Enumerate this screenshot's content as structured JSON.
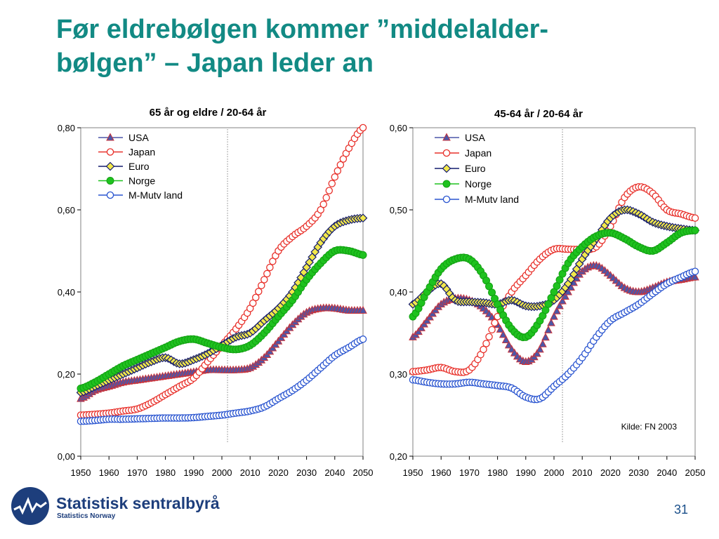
{
  "slide": {
    "title_line1": "Før eldrebølgen kommer ”middelalder-",
    "title_line2": "bølgen” – Japan leder an",
    "page_number": "31"
  },
  "logo": {
    "name": "Statistisk sentralbyrå",
    "subtitle": "Statistics Norway"
  },
  "colors": {
    "title": "#128a84",
    "usa": "#4b57a8",
    "japan": "#e8302a",
    "euro": "#141b6e",
    "euro_fill": "#f2e84a",
    "norge": "#1fc21f",
    "mutv": "#2a55d0"
  },
  "chart_data": [
    {
      "type": "line",
      "title": "65 år og eldre / 20-64 år",
      "x_ticks": [
        "1950",
        "1960",
        "1970",
        "1980",
        "1990",
        "2000",
        "2010",
        "2020",
        "2030",
        "2040",
        "2050"
      ],
      "y_ticks": [
        "0,00",
        "0,20",
        "0,40",
        "0,60",
        "0,80"
      ],
      "ylim": [
        0,
        0.8
      ],
      "xlim": [
        1950,
        2050
      ],
      "reference_line_x": 2002,
      "legend_position": "top-left",
      "grid": false,
      "series": [
        {
          "name": "USA",
          "marker": "triangle",
          "points": [
            [
              1950,
              0.14
            ],
            [
              1955,
              0.16
            ],
            [
              1960,
              0.17
            ],
            [
              1965,
              0.18
            ],
            [
              1970,
              0.185
            ],
            [
              1975,
              0.19
            ],
            [
              1980,
              0.195
            ],
            [
              1985,
              0.2
            ],
            [
              1990,
              0.205
            ],
            [
              1995,
              0.21
            ],
            [
              2000,
              0.21
            ],
            [
              2005,
              0.21
            ],
            [
              2010,
              0.215
            ],
            [
              2015,
              0.24
            ],
            [
              2020,
              0.28
            ],
            [
              2025,
              0.32
            ],
            [
              2030,
              0.35
            ],
            [
              2035,
              0.36
            ],
            [
              2040,
              0.36
            ],
            [
              2045,
              0.355
            ],
            [
              2050,
              0.355
            ]
          ]
        },
        {
          "name": "Japan",
          "marker": "circle-open",
          "points": [
            [
              1950,
              0.1
            ],
            [
              1955,
              0.102
            ],
            [
              1960,
              0.105
            ],
            [
              1965,
              0.11
            ],
            [
              1970,
              0.115
            ],
            [
              1975,
              0.13
            ],
            [
              1980,
              0.15
            ],
            [
              1985,
              0.17
            ],
            [
              1990,
              0.19
            ],
            [
              1995,
              0.23
            ],
            [
              2000,
              0.27
            ],
            [
              2005,
              0.31
            ],
            [
              2010,
              0.36
            ],
            [
              2015,
              0.43
            ],
            [
              2020,
              0.5
            ],
            [
              2025,
              0.535
            ],
            [
              2030,
              0.56
            ],
            [
              2035,
              0.6
            ],
            [
              2040,
              0.68
            ],
            [
              2045,
              0.75
            ],
            [
              2050,
              0.8
            ]
          ]
        },
        {
          "name": "Euro",
          "marker": "diamond",
          "points": [
            [
              1950,
              0.155
            ],
            [
              1955,
              0.17
            ],
            [
              1960,
              0.185
            ],
            [
              1965,
              0.2
            ],
            [
              1970,
              0.215
            ],
            [
              1975,
              0.23
            ],
            [
              1980,
              0.24
            ],
            [
              1985,
              0.225
            ],
            [
              1990,
              0.235
            ],
            [
              1995,
              0.25
            ],
            [
              2000,
              0.27
            ],
            [
              2005,
              0.29
            ],
            [
              2010,
              0.3
            ],
            [
              2015,
              0.33
            ],
            [
              2020,
              0.36
            ],
            [
              2025,
              0.4
            ],
            [
              2030,
              0.46
            ],
            [
              2035,
              0.52
            ],
            [
              2040,
              0.56
            ],
            [
              2045,
              0.575
            ],
            [
              2050,
              0.58
            ]
          ]
        },
        {
          "name": "Norge",
          "marker": "circle-filled",
          "points": [
            [
              1950,
              0.165
            ],
            [
              1955,
              0.18
            ],
            [
              1960,
              0.2
            ],
            [
              1965,
              0.22
            ],
            [
              1970,
              0.235
            ],
            [
              1975,
              0.25
            ],
            [
              1980,
              0.265
            ],
            [
              1985,
              0.28
            ],
            [
              1990,
              0.285
            ],
            [
              1995,
              0.275
            ],
            [
              2000,
              0.265
            ],
            [
              2005,
              0.26
            ],
            [
              2010,
              0.27
            ],
            [
              2015,
              0.3
            ],
            [
              2020,
              0.34
            ],
            [
              2025,
              0.38
            ],
            [
              2030,
              0.43
            ],
            [
              2035,
              0.47
            ],
            [
              2040,
              0.5
            ],
            [
              2045,
              0.5
            ],
            [
              2050,
              0.49
            ]
          ]
        },
        {
          "name": "M-Mutv land",
          "marker": "circle-open",
          "points": [
            [
              1950,
              0.085
            ],
            [
              1955,
              0.087
            ],
            [
              1960,
              0.09
            ],
            [
              1965,
              0.09
            ],
            [
              1970,
              0.091
            ],
            [
              1975,
              0.092
            ],
            [
              1980,
              0.093
            ],
            [
              1985,
              0.093
            ],
            [
              1990,
              0.094
            ],
            [
              1995,
              0.097
            ],
            [
              2000,
              0.1
            ],
            [
              2005,
              0.105
            ],
            [
              2010,
              0.11
            ],
            [
              2015,
              0.12
            ],
            [
              2020,
              0.14
            ],
            [
              2025,
              0.16
            ],
            [
              2030,
              0.185
            ],
            [
              2035,
              0.215
            ],
            [
              2040,
              0.245
            ],
            [
              2045,
              0.265
            ],
            [
              2050,
              0.285
            ]
          ]
        }
      ]
    },
    {
      "type": "line",
      "title": "45-64 år / 20-64 år",
      "x_ticks": [
        "1950",
        "1960",
        "1970",
        "1980",
        "1990",
        "2000",
        "2010",
        "2020",
        "2030",
        "2040",
        "2050"
      ],
      "y_ticks": [
        "0,20",
        "0,30",
        "0,40",
        "0,50",
        "0,60"
      ],
      "ylim": [
        0.2,
        0.6
      ],
      "xlim": [
        1950,
        2050
      ],
      "reference_line_x": 2003,
      "legend_position": "top-left",
      "grid": false,
      "annotation": "Kilde: FN 2003",
      "series": [
        {
          "name": "USA",
          "marker": "triangle",
          "points": [
            [
              1950,
              0.345
            ],
            [
              1955,
              0.365
            ],
            [
              1960,
              0.385
            ],
            [
              1965,
              0.392
            ],
            [
              1970,
              0.39
            ],
            [
              1975,
              0.38
            ],
            [
              1980,
              0.36
            ],
            [
              1985,
              0.33
            ],
            [
              1990,
              0.315
            ],
            [
              1995,
              0.33
            ],
            [
              2000,
              0.37
            ],
            [
              2005,
              0.4
            ],
            [
              2010,
              0.425
            ],
            [
              2015,
              0.432
            ],
            [
              2020,
              0.42
            ],
            [
              2025,
              0.405
            ],
            [
              2030,
              0.4
            ],
            [
              2035,
              0.405
            ],
            [
              2040,
              0.412
            ],
            [
              2045,
              0.415
            ],
            [
              2050,
              0.418
            ]
          ]
        },
        {
          "name": "Japan",
          "marker": "circle-open",
          "points": [
            [
              1950,
              0.303
            ],
            [
              1955,
              0.305
            ],
            [
              1960,
              0.308
            ],
            [
              1965,
              0.303
            ],
            [
              1970,
              0.305
            ],
            [
              1975,
              0.33
            ],
            [
              1980,
              0.37
            ],
            [
              1985,
              0.4
            ],
            [
              1990,
              0.42
            ],
            [
              1995,
              0.44
            ],
            [
              2000,
              0.452
            ],
            [
              2005,
              0.452
            ],
            [
              2010,
              0.452
            ],
            [
              2015,
              0.455
            ],
            [
              2020,
              0.48
            ],
            [
              2025,
              0.515
            ],
            [
              2030,
              0.528
            ],
            [
              2035,
              0.52
            ],
            [
              2040,
              0.5
            ],
            [
              2045,
              0.495
            ],
            [
              2050,
              0.49
            ]
          ]
        },
        {
          "name": "Euro",
          "marker": "diamond",
          "points": [
            [
              1950,
              0.385
            ],
            [
              1955,
              0.4
            ],
            [
              1960,
              0.41
            ],
            [
              1965,
              0.39
            ],
            [
              1970,
              0.388
            ],
            [
              1975,
              0.387
            ],
            [
              1980,
              0.385
            ],
            [
              1985,
              0.39
            ],
            [
              1990,
              0.383
            ],
            [
              1995,
              0.383
            ],
            [
              2000,
              0.39
            ],
            [
              2005,
              0.41
            ],
            [
              2010,
              0.44
            ],
            [
              2015,
              0.465
            ],
            [
              2020,
              0.49
            ],
            [
              2025,
              0.5
            ],
            [
              2030,
              0.495
            ],
            [
              2035,
              0.485
            ],
            [
              2040,
              0.48
            ],
            [
              2045,
              0.477
            ],
            [
              2050,
              0.475
            ]
          ]
        },
        {
          "name": "Norge",
          "marker": "circle-filled",
          "points": [
            [
              1950,
              0.37
            ],
            [
              1955,
              0.4
            ],
            [
              1960,
              0.428
            ],
            [
              1965,
              0.44
            ],
            [
              1970,
              0.44
            ],
            [
              1975,
              0.42
            ],
            [
              1980,
              0.385
            ],
            [
              1985,
              0.355
            ],
            [
              1990,
              0.345
            ],
            [
              1995,
              0.365
            ],
            [
              2000,
              0.4
            ],
            [
              2005,
              0.435
            ],
            [
              2010,
              0.455
            ],
            [
              2015,
              0.468
            ],
            [
              2020,
              0.472
            ],
            [
              2025,
              0.465
            ],
            [
              2030,
              0.455
            ],
            [
              2035,
              0.45
            ],
            [
              2040,
              0.46
            ],
            [
              2045,
              0.472
            ],
            [
              2050,
              0.475
            ]
          ]
        },
        {
          "name": "M-Mutv land",
          "marker": "circle-open",
          "points": [
            [
              1950,
              0.293
            ],
            [
              1955,
              0.29
            ],
            [
              1960,
              0.288
            ],
            [
              1965,
              0.288
            ],
            [
              1970,
              0.29
            ],
            [
              1975,
              0.288
            ],
            [
              1980,
              0.286
            ],
            [
              1985,
              0.283
            ],
            [
              1990,
              0.272
            ],
            [
              1995,
              0.27
            ],
            [
              2000,
              0.285
            ],
            [
              2005,
              0.3
            ],
            [
              2010,
              0.32
            ],
            [
              2015,
              0.345
            ],
            [
              2020,
              0.365
            ],
            [
              2025,
              0.375
            ],
            [
              2030,
              0.385
            ],
            [
              2035,
              0.398
            ],
            [
              2040,
              0.41
            ],
            [
              2045,
              0.418
            ],
            [
              2050,
              0.425
            ]
          ]
        }
      ]
    }
  ]
}
